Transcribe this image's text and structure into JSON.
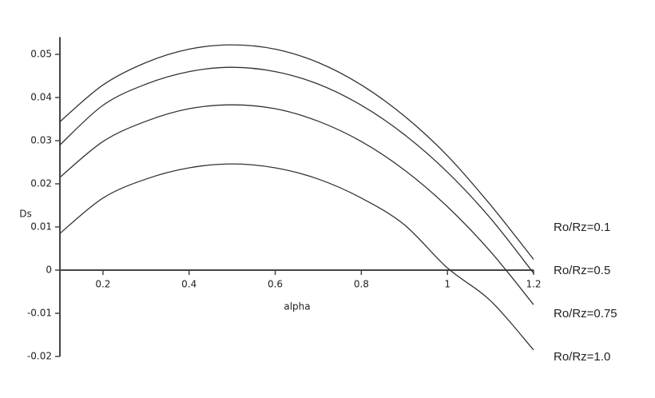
{
  "chart_data": {
    "type": "line",
    "x_label": "alpha",
    "y_label": "Ds",
    "x": [
      0.1,
      0.2,
      0.3,
      0.4,
      0.5,
      0.6,
      0.7,
      0.8,
      0.9,
      1.0,
      1.1,
      1.2
    ],
    "series": [
      {
        "name": "Ro/Rz=0.1",
        "color": "#333333",
        "values": [
          0.0344,
          0.0429,
          0.0481,
          0.0512,
          0.0522,
          0.0512,
          0.0481,
          0.0429,
          0.0357,
          0.0265,
          0.0151,
          0.0025
        ]
      },
      {
        "name": "Ro/Rz=0.5",
        "color": "#333333",
        "values": [
          0.029,
          0.0382,
          0.0431,
          0.046,
          0.047,
          0.046,
          0.0431,
          0.0382,
          0.0314,
          0.0227,
          0.012,
          -0.0007
        ]
      },
      {
        "name": "Ro/Rz=0.75",
        "color": "#333333",
        "values": [
          0.0215,
          0.0298,
          0.0345,
          0.0374,
          0.0383,
          0.0374,
          0.0345,
          0.0298,
          0.0232,
          0.0147,
          0.0043,
          -0.008
        ]
      },
      {
        "name": "Ro/Rz=1.0",
        "color": "#333333",
        "values": [
          0.0085,
          0.0167,
          0.0211,
          0.0237,
          0.0246,
          0.0237,
          0.0211,
          0.0167,
          0.0105,
          0.0005,
          -0.0071,
          -0.0185
        ]
      }
    ],
    "xlim": [
      0.1,
      1.2
    ],
    "xticks": [
      0.2,
      0.4,
      0.6,
      0.8,
      1,
      1.2
    ],
    "ylim": [
      -0.02,
      0.054
    ],
    "yticks": [
      -0.02,
      -0.01,
      0,
      0.01,
      0.02,
      0.03,
      0.04,
      0.05
    ],
    "grid": false
  }
}
